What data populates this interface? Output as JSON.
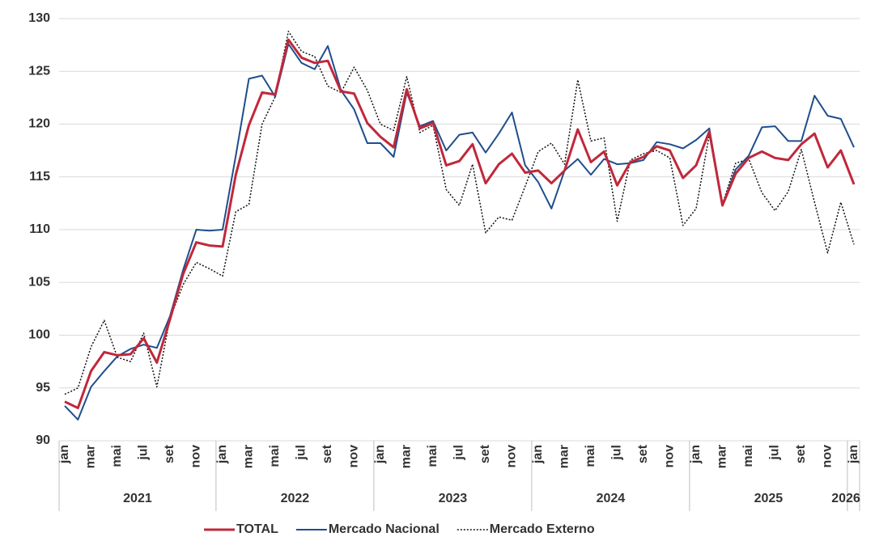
{
  "chart_data": {
    "type": "line",
    "categories": [
      "jan",
      null,
      "mar",
      null,
      "mai",
      null,
      "jul",
      null,
      "set",
      null,
      "nov",
      null,
      "jan",
      null,
      "mar",
      null,
      "mai",
      null,
      "jul",
      null,
      "set",
      null,
      "nov",
      null,
      "jan",
      null,
      "mar",
      null,
      "mai",
      null,
      "jul",
      null,
      "set",
      null,
      "nov",
      null,
      "jan",
      null,
      "mar",
      null,
      "mai",
      null,
      "jul",
      null,
      "set",
      null,
      "nov",
      null,
      "jan",
      null,
      "mar",
      null,
      "mai",
      null,
      "jul",
      null,
      "set",
      null,
      "nov",
      null,
      "jan"
    ],
    "years": [
      "2021",
      "2022",
      "2023",
      "2024",
      "2025",
      "2026"
    ],
    "series": [
      {
        "name": "TOTAL",
        "color": "#c0283b",
        "dash": false,
        "width": 3,
        "values": [
          93.7,
          93.1,
          96.6,
          98.4,
          98.1,
          98.2,
          99.7,
          97.4,
          101.5,
          105.8,
          108.8,
          108.5,
          108.4,
          115.2,
          119.9,
          123.0,
          122.8,
          128.0,
          126.3,
          125.8,
          126.0,
          123.1,
          122.9,
          120.1,
          118.8,
          117.8,
          123.3,
          119.6,
          120.1,
          116.1,
          116.5,
          118.1,
          114.4,
          116.2,
          117.2,
          115.4,
          115.6,
          114.4,
          115.6,
          119.5,
          116.4,
          117.4,
          114.2,
          116.4,
          116.9,
          117.9,
          117.5,
          114.9,
          116.1,
          119.3,
          112.3,
          115.3,
          116.8,
          117.4,
          116.8,
          116.6,
          118.1,
          119.1,
          115.9,
          117.5,
          114.3
        ]
      },
      {
        "name": "Mercado Nacional",
        "color": "#1f4e8c",
        "dash": false,
        "width": 2,
        "values": [
          93.3,
          92.0,
          95.1,
          96.6,
          98.0,
          98.7,
          99.1,
          98.8,
          101.8,
          106.2,
          110.0,
          109.9,
          110.0,
          117.0,
          124.3,
          124.6,
          122.6,
          127.6,
          125.8,
          125.2,
          127.4,
          123.2,
          121.4,
          118.2,
          118.2,
          116.9,
          123.0,
          119.8,
          120.3,
          117.5,
          119.0,
          119.2,
          117.3,
          119.1,
          121.1,
          116.1,
          114.5,
          112.0,
          115.6,
          116.7,
          115.2,
          116.7,
          116.2,
          116.3,
          116.6,
          118.3,
          118.1,
          117.7,
          118.5,
          119.6,
          112.3,
          115.7,
          117.0,
          119.7,
          119.8,
          118.4,
          118.4,
          122.7,
          120.8,
          120.5,
          117.8
        ]
      },
      {
        "name": "Mercado Externo",
        "color": "#111111",
        "dash": true,
        "width": 1.5,
        "values": [
          94.4,
          95.0,
          98.9,
          101.4,
          97.9,
          97.5,
          100.2,
          95.1,
          101.6,
          104.8,
          106.9,
          106.3,
          105.6,
          111.7,
          112.4,
          120.0,
          122.6,
          128.8,
          126.9,
          126.4,
          123.6,
          123.0,
          125.4,
          123.2,
          120.0,
          119.4,
          124.5,
          119.2,
          119.9,
          113.8,
          112.3,
          116.2,
          109.7,
          111.2,
          110.9,
          114.1,
          117.4,
          118.2,
          116.2,
          124.2,
          118.4,
          118.7,
          110.8,
          116.6,
          117.2,
          117.5,
          116.8,
          110.4,
          112.0,
          119.0,
          112.4,
          116.3,
          116.7,
          113.5,
          111.8,
          113.6,
          117.6,
          112.6,
          107.8,
          112.6,
          108.6
        ]
      }
    ],
    "ylim": [
      90,
      130
    ],
    "yticks": [
      90,
      95,
      100,
      105,
      110,
      115,
      120,
      125,
      130
    ],
    "grid": true,
    "legend": "bottom"
  }
}
